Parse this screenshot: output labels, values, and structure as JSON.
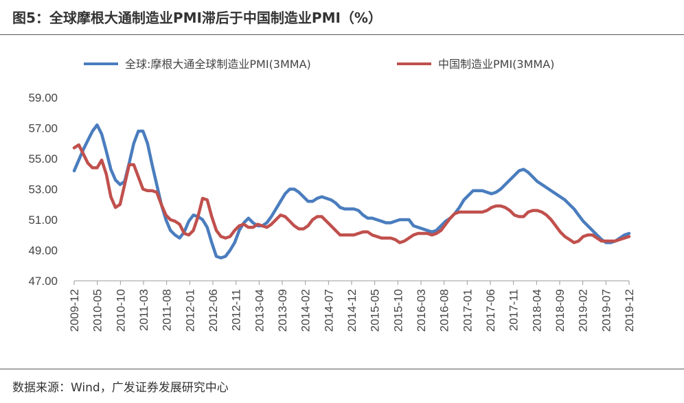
{
  "title": "图5：全球摩根大通制造业PMI滞后于中国制造业PMI（%）",
  "source": "数据来源：Wind，广发证券发展研究中心",
  "chart_data": {
    "type": "line",
    "title": "全球摩根大通制造业PMI滞后于中国制造业PMI（%）",
    "ylim": [
      47,
      59
    ],
    "yticks": [
      "59.00",
      "57.00",
      "55.00",
      "53.00",
      "51.00",
      "49.00",
      "47.00"
    ],
    "xticks": [
      "2009-12",
      "2010-05",
      "2010-10",
      "2011-03",
      "2011-08",
      "2012-01",
      "2012-06",
      "2012-11",
      "2013-04",
      "2013-09",
      "2014-02",
      "2014-07",
      "2014-12",
      "2015-05",
      "2015-10",
      "2016-03",
      "2016-08",
      "2017-01",
      "2017-06",
      "2017-11",
      "2018-04",
      "2018-09",
      "2019-02",
      "2019-07",
      "2019-12"
    ],
    "x_start": "2009-12",
    "x_end": "2019-12",
    "legend_position": "top",
    "series": [
      {
        "name": "全球:摩根大通全球制造业PMI(3MMA)",
        "color": "#4a7dbe",
        "values": [
          54.2,
          54.9,
          55.6,
          56.2,
          56.8,
          57.2,
          56.6,
          55.5,
          54.3,
          53.6,
          53.3,
          53.5,
          54.7,
          56.0,
          56.8,
          56.8,
          56.0,
          54.6,
          53.3,
          52.0,
          51.0,
          50.3,
          50.0,
          49.8,
          50.2,
          50.9,
          51.3,
          51.2,
          51.0,
          50.5,
          49.5,
          48.6,
          48.5,
          48.6,
          49.0,
          49.5,
          50.3,
          50.8,
          51.1,
          50.8,
          50.6,
          50.6,
          50.8,
          51.2,
          51.7,
          52.2,
          52.7,
          53.0,
          53.0,
          52.8,
          52.5,
          52.2,
          52.2,
          52.4,
          52.5,
          52.4,
          52.3,
          52.1,
          51.8,
          51.7,
          51.7,
          51.7,
          51.6,
          51.3,
          51.1,
          51.1,
          51.0,
          50.9,
          50.8,
          50.8,
          50.9,
          51.0,
          51.0,
          51.0,
          50.6,
          50.5,
          50.4,
          50.3,
          50.2,
          50.3,
          50.6,
          50.9,
          51.1,
          51.4,
          51.8,
          52.3,
          52.6,
          52.9,
          52.9,
          52.9,
          52.8,
          52.7,
          52.8,
          53.0,
          53.3,
          53.6,
          53.9,
          54.2,
          54.3,
          54.1,
          53.8,
          53.5,
          53.3,
          53.1,
          52.9,
          52.7,
          52.5,
          52.3,
          52.0,
          51.7,
          51.3,
          50.9,
          50.6,
          50.3,
          50.0,
          49.7,
          49.5,
          49.5,
          49.6,
          49.8,
          50.0,
          50.1
        ]
      },
      {
        "name": "中国制造业PMI(3MMA)",
        "color": "#c0504d",
        "values": [
          55.7,
          55.9,
          55.3,
          54.7,
          54.4,
          54.4,
          54.9,
          54.0,
          52.5,
          51.8,
          52.0,
          53.3,
          54.6,
          54.6,
          53.8,
          53.0,
          52.9,
          52.9,
          52.8,
          52.0,
          51.3,
          51.0,
          50.9,
          50.7,
          50.1,
          50.0,
          50.3,
          51.2,
          52.4,
          52.3,
          51.2,
          50.3,
          49.9,
          49.8,
          49.9,
          50.3,
          50.6,
          50.7,
          50.5,
          50.5,
          50.7,
          50.6,
          50.5,
          50.7,
          51.0,
          51.3,
          51.2,
          50.9,
          50.6,
          50.4,
          50.4,
          50.6,
          51.0,
          51.2,
          51.2,
          50.9,
          50.6,
          50.3,
          50.0,
          50.0,
          50.0,
          50.0,
          50.1,
          50.2,
          50.2,
          50.0,
          49.9,
          49.8,
          49.8,
          49.8,
          49.7,
          49.5,
          49.6,
          49.8,
          50.0,
          50.1,
          50.1,
          50.1,
          50.0,
          50.1,
          50.3,
          50.7,
          51.1,
          51.4,
          51.5,
          51.5,
          51.5,
          51.5,
          51.5,
          51.5,
          51.6,
          51.8,
          51.9,
          51.9,
          51.8,
          51.6,
          51.3,
          51.2,
          51.2,
          51.5,
          51.6,
          51.6,
          51.5,
          51.3,
          51.0,
          50.6,
          50.2,
          49.9,
          49.7,
          49.5,
          49.6,
          49.9,
          50.0,
          50.0,
          49.8,
          49.6,
          49.6,
          49.6,
          49.6,
          49.7,
          49.8,
          49.9
        ]
      }
    ]
  }
}
